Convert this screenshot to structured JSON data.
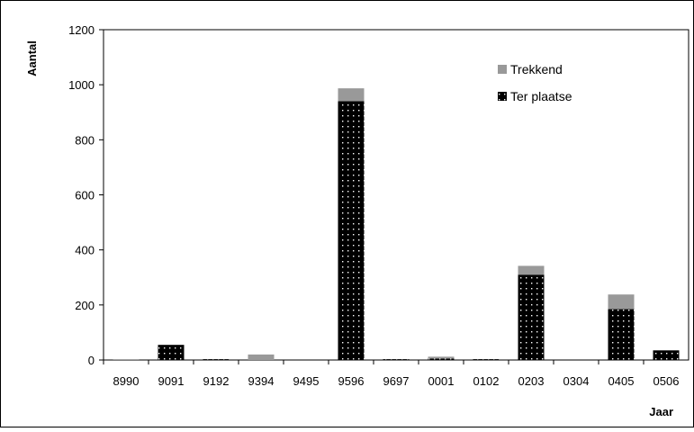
{
  "chart_data": {
    "type": "bar",
    "stacked": true,
    "categories": [
      "8990",
      "9091",
      "9192",
      "9394",
      "9495",
      "9596",
      "9697",
      "0001",
      "0102",
      "0203",
      "0304",
      "0405",
      "0506"
    ],
    "series": [
      {
        "name": "Ter plaatse",
        "values": [
          0,
          55,
          3,
          0,
          0,
          940,
          3,
          5,
          3,
          310,
          0,
          185,
          35
        ],
        "color": "#000000",
        "pattern": "dotted"
      },
      {
        "name": "Trekkend",
        "values": [
          3,
          0,
          0,
          20,
          0,
          47,
          0,
          7,
          0,
          32,
          0,
          53,
          0
        ],
        "color": "#999999"
      }
    ],
    "xlabel": "Jaar",
    "ylabel": "Aantal",
    "ylim": [
      0,
      1200
    ],
    "yticks": [
      0,
      200,
      400,
      600,
      800,
      1000,
      1200
    ],
    "grid": false,
    "legend_position": "top-right"
  }
}
